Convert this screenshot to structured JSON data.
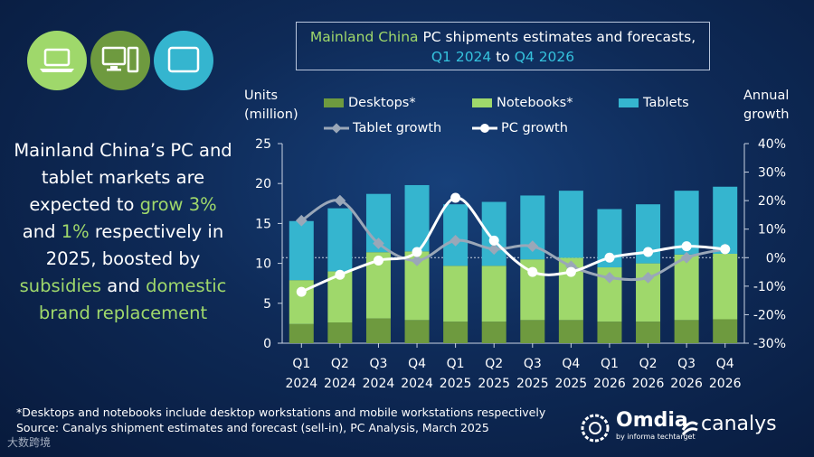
{
  "title": {
    "line1_a": "Mainland China",
    "line1_b": " PC shipments estimates and forecasts,",
    "line2_a": "Q1 2024",
    "line2_b": " to ",
    "line2_c": "Q4 2026"
  },
  "left_text": {
    "p1": "Mainland China’s PC and tablet markets are expected to ",
    "grow": "grow",
    "p2": "3%",
    "p3": " and ",
    "p4": "1%",
    "p5": " respectively in 2025, boosted by ",
    "subsidies": "subsidies",
    "p6": " and ",
    "dbr": "domestic brand replacement"
  },
  "icons": [
    "laptop-icon",
    "desktop-icon",
    "tablet-icon"
  ],
  "colors": {
    "desktops": "#6e9a3f",
    "notebooks": "#9fd86b",
    "tablets": "#35b5cf",
    "tablet_growth": "#9aa7b8",
    "pc_growth": "#ffffff"
  },
  "footnote1": "*Desktops and notebooks include desktop workstations and mobile workstations respectively",
  "footnote2": "Source: Canalys shipment estimates and forecast (sell-in), PC Analysis, March 2025",
  "logos": {
    "omdia": "Omdia",
    "omdia_sub": "by informa techtarget",
    "canalys": "canalys"
  },
  "watermark": "大数跨境",
  "chart_data": {
    "type": "bar",
    "stacked": true,
    "categories": [
      "Q1 2024",
      "Q2 2024",
      "Q3 2024",
      "Q4 2024",
      "Q1 2025",
      "Q2 2025",
      "Q3 2025",
      "Q4 2025",
      "Q1 2026",
      "Q2 2026",
      "Q3 2026",
      "Q4 2026"
    ],
    "cat_q": [
      "Q1",
      "Q2",
      "Q3",
      "Q4",
      "Q1",
      "Q2",
      "Q3",
      "Q4",
      "Q1",
      "Q2",
      "Q3",
      "Q4"
    ],
    "cat_y": [
      "2024",
      "2024",
      "2024",
      "2024",
      "2025",
      "2025",
      "2025",
      "2025",
      "2026",
      "2026",
      "2026",
      "2026"
    ],
    "series": [
      {
        "name": "Desktops*",
        "values": [
          2.4,
          2.6,
          3.1,
          2.9,
          2.7,
          2.7,
          2.9,
          2.9,
          2.7,
          2.7,
          2.9,
          3.0
        ]
      },
      {
        "name": "Notebooks*",
        "values": [
          5.5,
          6.4,
          8.3,
          8.6,
          7.0,
          7.0,
          7.6,
          7.8,
          6.8,
          7.3,
          8.2,
          8.2
        ]
      },
      {
        "name": "Tablets",
        "values": [
          7.4,
          7.9,
          7.3,
          8.3,
          7.7,
          8.0,
          8.0,
          8.4,
          7.3,
          7.4,
          8.0,
          8.4
        ]
      }
    ],
    "lines": [
      {
        "name": "Tablet growth",
        "values": [
          13,
          20,
          5,
          -1,
          6,
          3,
          4,
          -3,
          -7,
          -7,
          0,
          3
        ]
      },
      {
        "name": "PC growth",
        "values": [
          -12,
          -6,
          -1,
          2,
          21,
          6,
          -5,
          -5,
          0,
          2,
          4,
          3
        ]
      }
    ],
    "ylabel": "Units (million)",
    "y2label": "Annual growth",
    "ylim": [
      0,
      25
    ],
    "yticks": [
      0,
      5,
      10,
      15,
      20,
      25
    ],
    "y2lim": [
      -30,
      40
    ],
    "y2ticks": [
      "-30%",
      "-20%",
      "-10%",
      "0%",
      "10%",
      "20%",
      "30%",
      "40%"
    ]
  }
}
